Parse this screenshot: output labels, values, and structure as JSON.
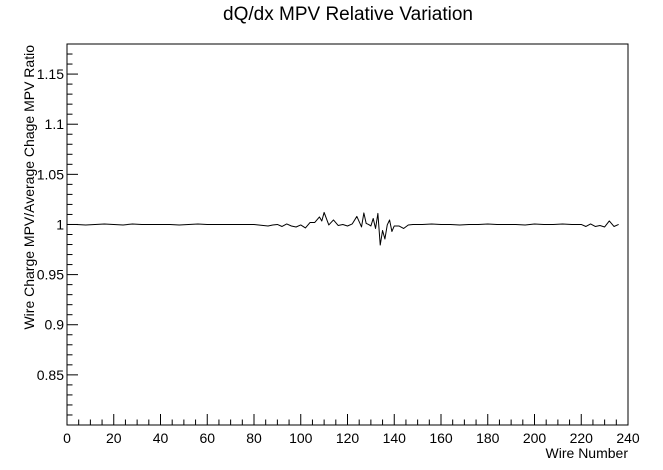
{
  "chart_data": {
    "type": "line",
    "title": "dQ/dx MPV Relative Variation",
    "xlabel": "Wire Number",
    "ylabel": "Wire Charge MPV/Average Chage MPV Ratio",
    "xlim": [
      0,
      240
    ],
    "ylim": [
      0.8,
      1.18
    ],
    "x_ticks": [
      "0",
      "20",
      "40",
      "60",
      "80",
      "100",
      "120",
      "140",
      "160",
      "180",
      "200",
      "220",
      "240"
    ],
    "y_ticks": [
      "0.85",
      "0.9",
      "0.95",
      "1",
      "1.05",
      "1.1",
      "1.15"
    ],
    "grid": false,
    "legend": "none",
    "line_color": "#000000",
    "series": [
      {
        "x": [
          0,
          4,
          8,
          12,
          16,
          20,
          24,
          28,
          32,
          36,
          40,
          44,
          48,
          52,
          56,
          60,
          64,
          68,
          72,
          76,
          80,
          84,
          86,
          88,
          90,
          92,
          94,
          96,
          98,
          100,
          102,
          104,
          106,
          108,
          109,
          110,
          112,
          114,
          116,
          118,
          120,
          122,
          124,
          126,
          127,
          128,
          129,
          130,
          131,
          132,
          133,
          134,
          135,
          136,
          137,
          138,
          139,
          140,
          142,
          144,
          146,
          148,
          152,
          156,
          160,
          164,
          168,
          172,
          176,
          180,
          184,
          188,
          192,
          196,
          200,
          204,
          208,
          212,
          216,
          220,
          222,
          224,
          226,
          228,
          230,
          232,
          234,
          236
        ],
        "y": [
          1.0,
          1.0,
          0.9995,
          1.0,
          1.0005,
          1.0,
          0.9995,
          1.0005,
          1.0,
          1.0,
          1.0,
          1.0,
          0.9995,
          1.0,
          1.0005,
          1.0,
          1.0,
          1.0,
          1.0,
          1.0,
          1.0,
          0.999,
          0.9985,
          0.9995,
          1.0,
          0.998,
          1.0005,
          0.9985,
          0.9975,
          0.9995,
          0.9965,
          1.002,
          1.002,
          1.0075,
          1.0035,
          1.012,
          0.9995,
          1.0045,
          0.999,
          1.0,
          0.9985,
          1.0005,
          1.008,
          0.9975,
          1.0115,
          1.001,
          1.0,
          0.9985,
          1.006,
          0.996,
          1.011,
          0.9795,
          0.994,
          0.9855,
          0.9995,
          1.0045,
          0.993,
          0.9985,
          0.9985,
          0.996,
          0.9995,
          1.0,
          1.0,
          1.0005,
          1.0,
          1.0,
          0.9995,
          1.0,
          1.0,
          1.0005,
          1.0,
          1.0,
          1.0,
          0.9995,
          1.0005,
          1.0,
          1.0,
          1.0005,
          1.0,
          1.0,
          0.998,
          1.0005,
          0.998,
          0.999,
          0.9975,
          1.0035,
          0.998,
          1.0
        ]
      }
    ]
  }
}
